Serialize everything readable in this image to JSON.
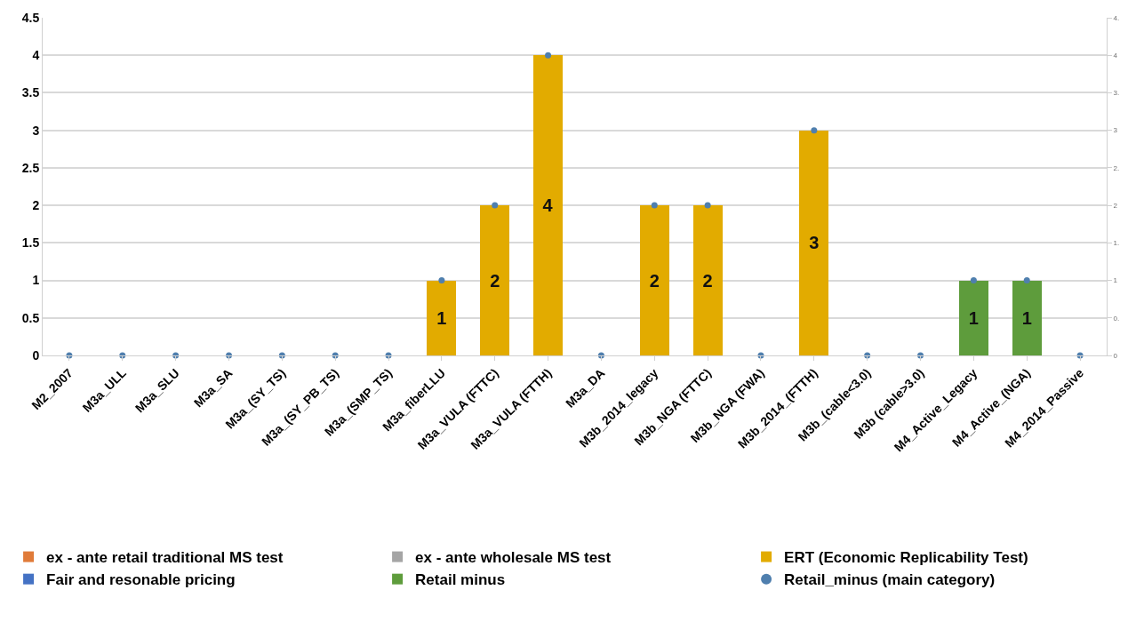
{
  "chart_data": {
    "type": "bar",
    "stacked": true,
    "legend": "bottom",
    "grid": "y",
    "tick_labels": [
      "x",
      "y",
      "y2"
    ],
    "categories": [
      "M2_2007",
      "M3a_ULL",
      "M3a_SLU",
      "M3a_SA",
      "M3a_(SY_TS)",
      "M3a_(SY_PB_TS)",
      "M3a_(SMP_TS)",
      "M3a_fiberLLU",
      "M3a_VULA (FTTC)",
      "M3a_VULA (FTTH)",
      "M3a_DA",
      "M3b_2014_legacy",
      "M3b_NGA (FTTC)",
      "M3b_NGA (FWA)",
      "M3b_2014_(FTTH)",
      "M3b_(cable<3.0)",
      "M3b (cable>3.0)",
      "M4_Active_Legacy",
      "M4_Active_(NGA)",
      "M4_2014_Passive"
    ],
    "ylim": [
      0,
      4.5
    ],
    "yticks": [
      0,
      0.5,
      1,
      1.5,
      2,
      2.5,
      3,
      3.5,
      4,
      4.5
    ],
    "y2lim": [
      0,
      4.5
    ],
    "y2ticks": [
      0,
      {
        "value": 0.5,
        "label": "0."
      },
      1,
      {
        "value": 1.5,
        "label": "1."
      },
      2,
      {
        "value": 2.5,
        "label": "2."
      },
      3,
      {
        "value": 3.5,
        "label": "3."
      },
      4,
      {
        "value": 4.5,
        "label": "4."
      }
    ],
    "series": [
      {
        "name": "ex - ante retail traditional MS test",
        "color": "#e07b39",
        "values": [
          null,
          null,
          null,
          null,
          null,
          null,
          null,
          null,
          null,
          null,
          null,
          null,
          null,
          null,
          null,
          null,
          null,
          null,
          null,
          null
        ]
      },
      {
        "name": "ex - ante wholesale MS test",
        "color": "#a5a5a5",
        "values": [
          null,
          null,
          null,
          null,
          null,
          null,
          null,
          null,
          null,
          null,
          null,
          null,
          null,
          null,
          null,
          null,
          null,
          null,
          null,
          null
        ]
      },
      {
        "name": "ERT (Economic Replicability Test)",
        "color": "#e2ab00",
        "values": [
          null,
          null,
          null,
          null,
          null,
          null,
          null,
          1,
          2,
          4,
          null,
          2,
          2,
          null,
          3,
          null,
          null,
          null,
          null,
          null
        ],
        "value_labels": [
          null,
          null,
          null,
          null,
          null,
          null,
          null,
          "1",
          "2",
          "4",
          null,
          "2",
          "2",
          null,
          "3",
          null,
          null,
          null,
          null,
          null
        ]
      },
      {
        "name": "Fair and resonable pricing",
        "color": "#4472c4",
        "values": [
          null,
          null,
          null,
          null,
          null,
          null,
          null,
          null,
          null,
          null,
          null,
          null,
          null,
          null,
          null,
          null,
          null,
          null,
          null,
          null
        ]
      },
      {
        "name": "Retail minus",
        "color": "#5e9c3c",
        "values": [
          null,
          null,
          null,
          null,
          null,
          null,
          null,
          null,
          null,
          null,
          null,
          null,
          null,
          null,
          null,
          null,
          null,
          1,
          1,
          null
        ],
        "value_labels": [
          null,
          null,
          null,
          null,
          null,
          null,
          null,
          null,
          null,
          null,
          null,
          null,
          null,
          null,
          null,
          null,
          null,
          "1",
          "1",
          null
        ]
      },
      {
        "name": "Retail_minus (main category)",
        "type": "scatter",
        "axis": "y2",
        "marker": "circle",
        "color": "#4f7fae",
        "values": [
          0,
          0,
          0,
          0,
          0,
          0,
          0,
          1,
          2,
          4,
          0,
          2,
          2,
          0,
          3,
          0,
          0,
          1,
          1,
          0
        ]
      }
    ]
  }
}
